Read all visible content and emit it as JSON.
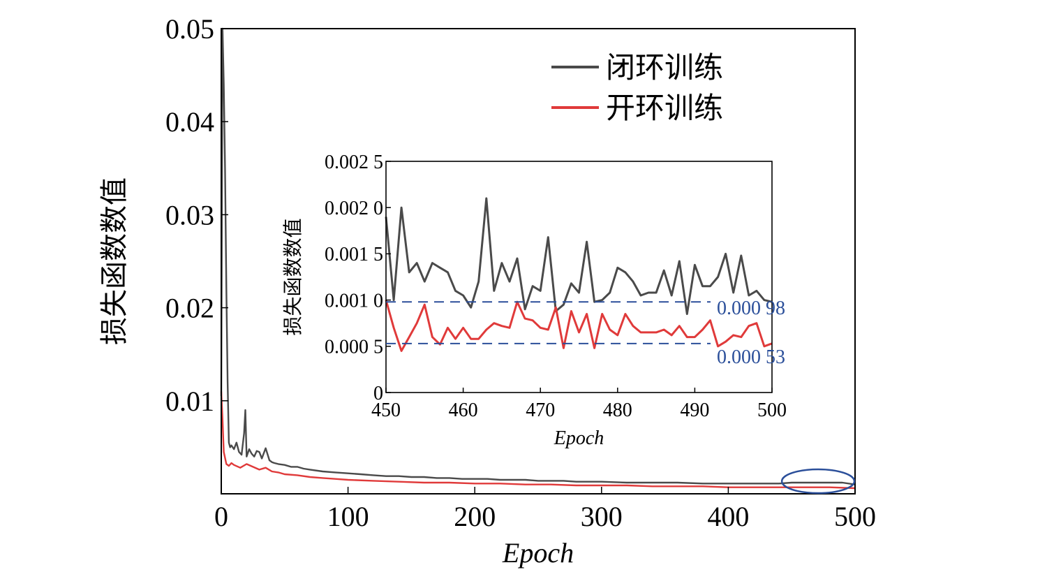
{
  "colors": {
    "closed_loop": "#4a4a4a",
    "open_loop": "#e03a3a",
    "reference": "#2b4f9a",
    "frame": "#000000"
  },
  "chart_data": [
    {
      "id": "main",
      "type": "line",
      "xlabel": "Epoch",
      "ylabel": "损失函数数值",
      "xlim": [
        0,
        500
      ],
      "ylim": [
        0,
        0.05
      ],
      "xticks": [
        0,
        100,
        200,
        300,
        400,
        500
      ],
      "xtick_labels": [
        "0",
        "100",
        "200",
        "300",
        "400",
        "500"
      ],
      "yticks": [
        0.01,
        0.02,
        0.03,
        0.04,
        0.05
      ],
      "ytick_labels": [
        "0.01",
        "0.02",
        "0.03",
        "0.04",
        "0.05"
      ],
      "legend_position": "top-right",
      "grid": false,
      "highlight": {
        "shape": "ellipse",
        "x_range": [
          445,
          500
        ],
        "note": "region magnified in inset"
      },
      "series": [
        {
          "name": "闭环训练",
          "color_key": "closed_loop",
          "x": [
            0,
            1,
            2,
            3,
            4,
            5,
            6,
            7,
            8,
            10,
            12,
            14,
            16,
            18,
            19,
            20,
            22,
            24,
            26,
            28,
            30,
            32,
            35,
            38,
            40,
            42,
            45,
            50,
            55,
            60,
            65,
            70,
            80,
            90,
            100,
            110,
            120,
            130,
            140,
            150,
            160,
            170,
            180,
            190,
            200,
            210,
            220,
            230,
            240,
            250,
            260,
            270,
            280,
            290,
            300,
            320,
            340,
            360,
            380,
            400,
            420,
            440,
            450,
            460,
            470,
            480,
            490,
            500
          ],
          "y": [
            0.0105,
            0.05,
            0.044,
            0.035,
            0.022,
            0.012,
            0.0055,
            0.005,
            0.0052,
            0.0048,
            0.0055,
            0.0045,
            0.0042,
            0.0065,
            0.009,
            0.004,
            0.0048,
            0.0043,
            0.004,
            0.0046,
            0.0045,
            0.0038,
            0.0049,
            0.0036,
            0.0034,
            0.0033,
            0.0032,
            0.0031,
            0.0029,
            0.0029,
            0.0027,
            0.0026,
            0.0024,
            0.0023,
            0.0022,
            0.0021,
            0.002,
            0.0019,
            0.0019,
            0.0018,
            0.0018,
            0.0017,
            0.0017,
            0.0016,
            0.0016,
            0.0016,
            0.0015,
            0.0015,
            0.0015,
            0.0014,
            0.0014,
            0.0014,
            0.0013,
            0.0013,
            0.0013,
            0.0012,
            0.0012,
            0.0012,
            0.0011,
            0.0011,
            0.0011,
            0.0011,
            0.0012,
            0.0012,
            0.0012,
            0.0012,
            0.0012,
            0.001
          ]
        },
        {
          "name": "开环训练",
          "color_key": "open_loop",
          "x": [
            0,
            1,
            2,
            4,
            6,
            8,
            10,
            15,
            20,
            25,
            30,
            35,
            40,
            45,
            50,
            60,
            70,
            80,
            90,
            100,
            120,
            140,
            160,
            180,
            200,
            220,
            240,
            260,
            280,
            300,
            320,
            340,
            360,
            380,
            400,
            420,
            440,
            460,
            480,
            500
          ],
          "y": [
            0.011,
            0.008,
            0.0045,
            0.0032,
            0.003,
            0.0033,
            0.0031,
            0.0028,
            0.0032,
            0.0029,
            0.0026,
            0.0028,
            0.0024,
            0.0023,
            0.0021,
            0.002,
            0.0018,
            0.0017,
            0.0016,
            0.0015,
            0.0014,
            0.0013,
            0.0012,
            0.0012,
            0.0011,
            0.0011,
            0.001,
            0.001,
            0.0009,
            0.0009,
            0.0009,
            0.0008,
            0.0008,
            0.0008,
            0.0007,
            0.0007,
            0.0007,
            0.0007,
            0.0007,
            0.0006
          ]
        }
      ]
    },
    {
      "id": "inset",
      "type": "line",
      "xlabel": "Epoch",
      "ylabel": "损失函数数值",
      "xlim": [
        450,
        500
      ],
      "ylim": [
        0,
        0.0025
      ],
      "xticks": [
        450,
        460,
        470,
        480,
        490,
        500
      ],
      "xtick_labels": [
        "450",
        "460",
        "470",
        "480",
        "490",
        "500"
      ],
      "yticks": [
        0,
        0.0005,
        0.001,
        0.0015,
        0.002,
        0.0025
      ],
      "ytick_labels": [
        "0",
        "0.000 5",
        "0.001 0",
        "0.001 5",
        "0.002 0",
        "0.002 5"
      ],
      "grid": false,
      "reference_lines": [
        {
          "y": 0.00098,
          "label": "0.000 98",
          "style": "dashed",
          "color_key": "reference"
        },
        {
          "y": 0.00053,
          "label": "0.000 53",
          "style": "dashed",
          "color_key": "reference"
        }
      ],
      "series": [
        {
          "name": "闭环训练",
          "color_key": "closed_loop",
          "x": [
            450,
            451,
            452,
            453,
            454,
            455,
            456,
            457,
            458,
            459,
            460,
            461,
            462,
            463,
            464,
            465,
            466,
            467,
            468,
            469,
            470,
            471,
            472,
            473,
            474,
            475,
            476,
            477,
            478,
            479,
            480,
            481,
            482,
            483,
            484,
            485,
            486,
            487,
            488,
            489,
            490,
            491,
            492,
            493,
            494,
            495,
            496,
            497,
            498,
            499,
            500
          ],
          "y": [
            0.0019,
            0.001,
            0.002,
            0.0013,
            0.0014,
            0.0012,
            0.0014,
            0.00135,
            0.0013,
            0.0011,
            0.00105,
            0.00092,
            0.0012,
            0.0021,
            0.0011,
            0.0014,
            0.0012,
            0.00145,
            0.0009,
            0.00115,
            0.0011,
            0.00168,
            0.00088,
            0.00095,
            0.00118,
            0.00108,
            0.00163,
            0.00098,
            0.001,
            0.00108,
            0.00135,
            0.0013,
            0.0012,
            0.00105,
            0.00108,
            0.00108,
            0.00132,
            0.00105,
            0.00142,
            0.00085,
            0.00138,
            0.00115,
            0.00115,
            0.00125,
            0.0015,
            0.00108,
            0.00148,
            0.00105,
            0.0011,
            0.001,
            0.00098
          ]
        },
        {
          "name": "开环训练",
          "color_key": "open_loop",
          "x": [
            450,
            451,
            452,
            453,
            454,
            455,
            456,
            457,
            458,
            459,
            460,
            461,
            462,
            463,
            464,
            465,
            466,
            467,
            468,
            469,
            470,
            471,
            472,
            473,
            474,
            475,
            476,
            477,
            478,
            479,
            480,
            481,
            482,
            483,
            484,
            485,
            486,
            487,
            488,
            489,
            490,
            491,
            492,
            493,
            494,
            495,
            496,
            497,
            498,
            499,
            500
          ],
          "y": [
            0.001,
            0.0007,
            0.00045,
            0.0006,
            0.00075,
            0.00095,
            0.0006,
            0.00052,
            0.0007,
            0.00058,
            0.0007,
            0.00058,
            0.00058,
            0.00068,
            0.00075,
            0.00072,
            0.0007,
            0.00098,
            0.0008,
            0.00078,
            0.0007,
            0.00068,
            0.00092,
            0.00048,
            0.00088,
            0.00065,
            0.00085,
            0.00048,
            0.00085,
            0.00068,
            0.00062,
            0.00085,
            0.00072,
            0.00065,
            0.00065,
            0.00065,
            0.00068,
            0.00062,
            0.00072,
            0.0006,
            0.0006,
            0.00068,
            0.00078,
            0.0005,
            0.00055,
            0.00062,
            0.0006,
            0.00072,
            0.00075,
            0.0005,
            0.00053
          ]
        }
      ]
    }
  ]
}
